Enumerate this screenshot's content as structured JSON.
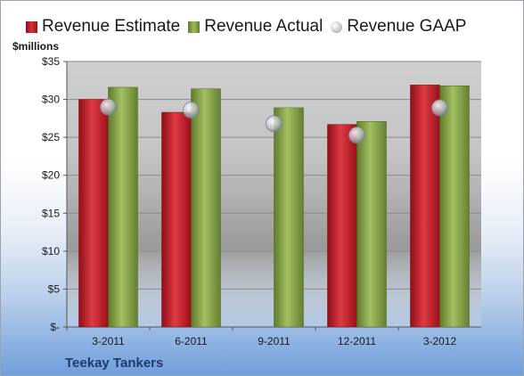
{
  "legend": {
    "estimate": "Revenue Estimate",
    "actual": "Revenue Actual",
    "gaap": "Revenue GAAP"
  },
  "units_label": "$millions",
  "company": "Teekay Tankers",
  "colors": {
    "estimate": "#c81e2a",
    "actual": "#8aa64c",
    "gaap": "#c9ccd2"
  },
  "chart_data": {
    "type": "bar",
    "title": "",
    "xlabel": "",
    "ylabel": "$millions",
    "categories": [
      "3-2011",
      "6-2011",
      "9-2011",
      "12-2011",
      "3-2012"
    ],
    "ylim": [
      0,
      35
    ],
    "y_ticks": [
      0,
      5,
      10,
      15,
      20,
      25,
      30,
      35
    ],
    "y_tick_labels": [
      "$-",
      "$5",
      "$10",
      "$15",
      "$20",
      "$25",
      "$30",
      "$35"
    ],
    "grid": true,
    "legend_position": "top",
    "series": [
      {
        "name": "Revenue Estimate",
        "type": "bar",
        "values": [
          30.0,
          28.3,
          null,
          26.7,
          31.9
        ]
      },
      {
        "name": "Revenue Actual",
        "type": "bar",
        "values": [
          31.6,
          31.4,
          28.9,
          27.1,
          31.8
        ]
      },
      {
        "name": "Revenue GAAP",
        "type": "scatter",
        "values": [
          29.0,
          28.6,
          26.8,
          25.3,
          28.9
        ]
      }
    ]
  }
}
